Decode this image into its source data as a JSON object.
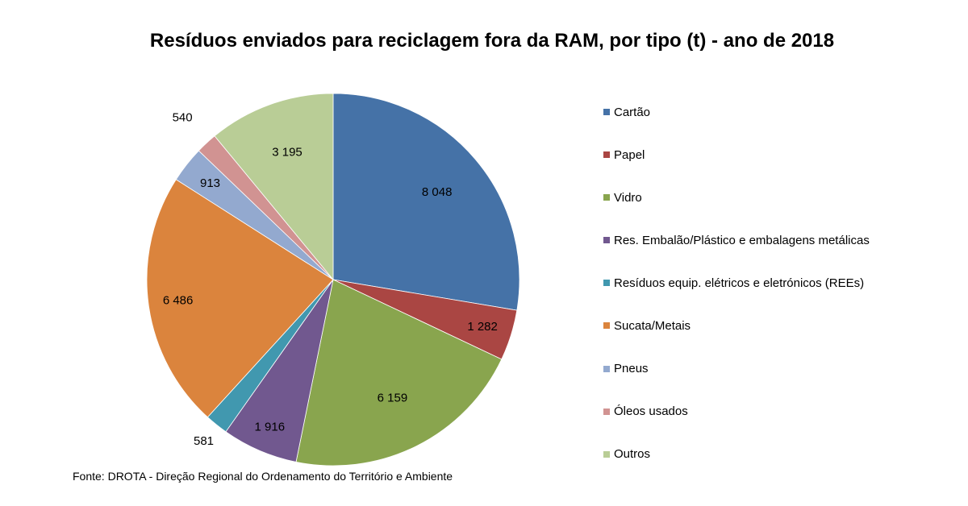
{
  "chart_data": {
    "type": "pie",
    "title": "Resíduos enviados para reciclagem fora da RAM, por tipo (t) - ano de 2018",
    "legend_position": "right",
    "slices": [
      {
        "name": "Cartão",
        "value": 8048,
        "label": "8 048",
        "color": "#4572A7"
      },
      {
        "name": "Papel",
        "value": 1282,
        "label": "1 282",
        "color": "#AA4643"
      },
      {
        "name": "Vidro",
        "value": 6159,
        "label": "6 159",
        "color": "#89A54E"
      },
      {
        "name": "Res. Embalão/Plástico e embalagens metálicas",
        "value": 1916,
        "label": "1 916",
        "color": "#71588F"
      },
      {
        "name": "Resíduos equip. elétricos e eletrónicos (REEs)",
        "value": 581,
        "label": "581",
        "color": "#4198AF"
      },
      {
        "name": "Sucata/Metais",
        "value": 6486,
        "label": "6 486",
        "color": "#DB843D"
      },
      {
        "name": "Pneus",
        "value": 913,
        "label": "913",
        "color": "#93A9CF"
      },
      {
        "name": "Óleos usados",
        "value": 540,
        "label": "540",
        "color": "#D19392"
      },
      {
        "name": "Outros",
        "value": 3195,
        "label": "3 195",
        "color": "#B9CD96"
      }
    ]
  },
  "source": "Fonte: DROTA - Direção Regional do Ordenamento do Território e Ambiente"
}
